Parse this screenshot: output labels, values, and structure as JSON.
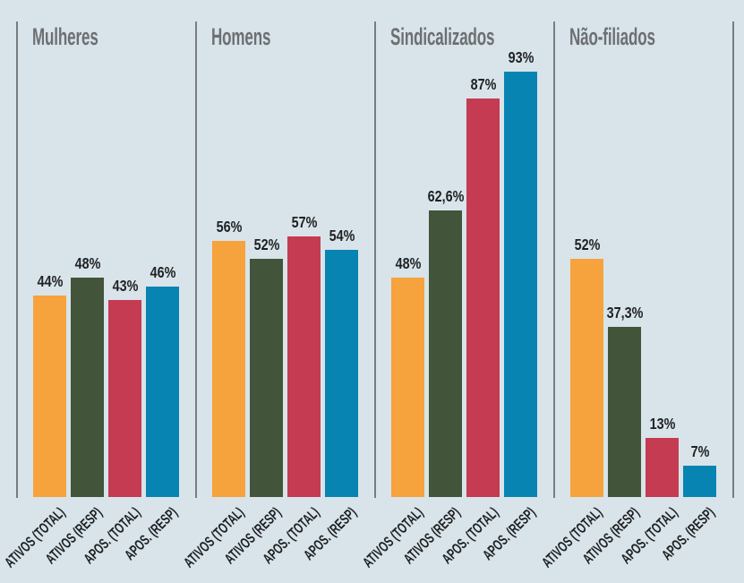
{
  "colors": {
    "background": "#d8e4e9",
    "divider": "#797c7e",
    "group_title": "#6d6f72",
    "text": "#1f2123",
    "series": [
      "#f6a23d",
      "#42543a",
      "#c43b52",
      "#0884b2"
    ]
  },
  "chart_data": {
    "type": "bar",
    "title": "",
    "xlabel": "",
    "ylabel": "",
    "unit": "%",
    "ylim": [
      0,
      100
    ],
    "grid": false,
    "legend": null,
    "categories": [
      "ATIVOS (TOTAL)",
      "ATIVOS (RESP)",
      "APOS. (TOTAL)",
      "APOS. (RESP)"
    ],
    "groups": [
      {
        "name": "Mulheres",
        "values": [
          44,
          48,
          43,
          46
        ],
        "labels": [
          "44%",
          "48%",
          "43%",
          "46%"
        ]
      },
      {
        "name": "Homens",
        "values": [
          56,
          52,
          57,
          54
        ],
        "labels": [
          "56%",
          "52%",
          "57%",
          "54%"
        ]
      },
      {
        "name": "Sindicalizados",
        "values": [
          48,
          62.6,
          87,
          93
        ],
        "labels": [
          "48%",
          "62,6%",
          "87%",
          "93%"
        ]
      },
      {
        "name": "Não-filiados",
        "values": [
          52,
          37.3,
          13,
          7
        ],
        "labels": [
          "52%",
          "37,3%",
          "13%",
          "7%"
        ]
      }
    ]
  }
}
